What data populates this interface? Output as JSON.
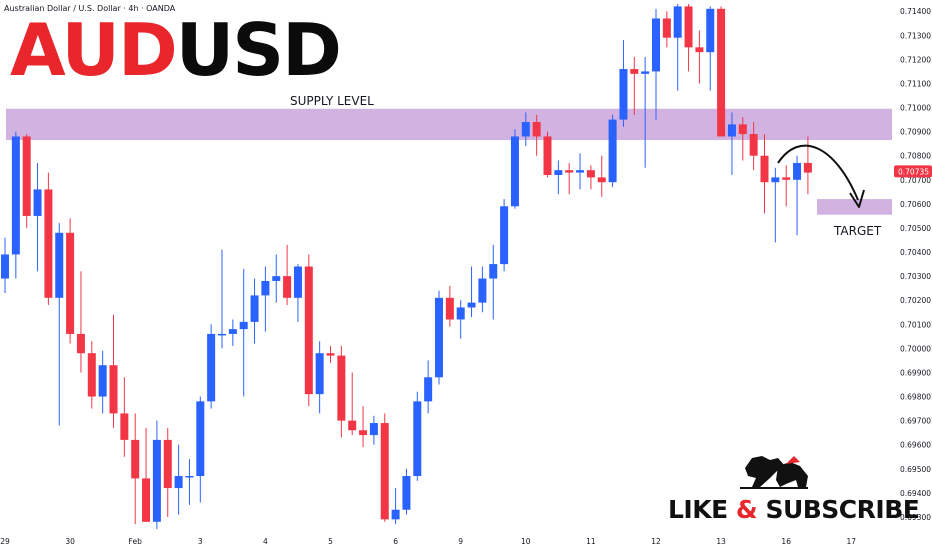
{
  "header": {
    "symbol_line": "Australian Dollar / U.S. Dollar · 4h · OANDA"
  },
  "title": {
    "part1": "AUD",
    "part2": "USD"
  },
  "annotations": {
    "supply_label": "SUPPLY LEVEL",
    "target_label": "TARGET",
    "cta_1": "LIKE",
    "cta_amp": "&",
    "cta_2": "SUBSCRIBE",
    "logo_icon": "bull-bear-fight-icon",
    "arrow_icon": "curved-down-arrow-icon"
  },
  "colors": {
    "up": "#2962ff",
    "down": "#f23645",
    "zone": "#c9a5dc",
    "price_label_bg": "#f23645"
  },
  "chart_data": {
    "type": "candlestick",
    "timeframe": "4h",
    "instrument": "AUDUSD",
    "ylim": [
      0.6925,
      0.7143
    ],
    "y_ticks": [
      0.714,
      0.713,
      0.712,
      0.711,
      0.71,
      0.709,
      0.708,
      0.707,
      0.706,
      0.705,
      0.704,
      0.703,
      0.702,
      0.701,
      0.7,
      0.699,
      0.698,
      0.697,
      0.696,
      0.695,
      0.694,
      0.693
    ],
    "y_tick_labels": [
      "0.71400",
      "0.71300",
      "0.71200",
      "0.71100",
      "0.71000",
      "0.70900",
      "0.70800",
      "0.70700",
      "0.70600",
      "0.70500",
      "0.70400",
      "0.70300",
      "0.70200",
      "0.70100",
      "0.70000",
      "0.69900",
      "0.69800",
      "0.69700",
      "0.69600",
      "0.69500",
      "0.69400",
      "0.69300"
    ],
    "x_ticks": [
      {
        "label": "29",
        "index": 0
      },
      {
        "label": "30",
        "index": 6
      },
      {
        "label": "Feb",
        "index": 12
      },
      {
        "label": "3",
        "index": 18
      },
      {
        "label": "4",
        "index": 24
      },
      {
        "label": "5",
        "index": 30
      },
      {
        "label": "6",
        "index": 36
      },
      {
        "label": "9",
        "index": 42
      },
      {
        "label": "10",
        "index": 48
      },
      {
        "label": "11",
        "index": 54
      },
      {
        "label": "12",
        "index": 60
      },
      {
        "label": "13",
        "index": 66
      },
      {
        "label": "16",
        "index": 72
      },
      {
        "label": "17",
        "index": 78
      }
    ],
    "current_price": 0.70735,
    "current_price_label": "0.70735",
    "supply_zone": [
      0.70865,
      0.70995
    ],
    "target_zone": [
      0.70555,
      0.7062
    ],
    "candles": [
      {
        "o": 0.7029,
        "h": 0.7046,
        "l": 0.7023,
        "c": 0.7039
      },
      {
        "o": 0.7039,
        "h": 0.709,
        "l": 0.7029,
        "c": 0.7088
      },
      {
        "o": 0.7088,
        "h": 0.7089,
        "l": 0.705,
        "c": 0.7055
      },
      {
        "o": 0.7055,
        "h": 0.7077,
        "l": 0.7032,
        "c": 0.7066
      },
      {
        "o": 0.7066,
        "h": 0.7073,
        "l": 0.7018,
        "c": 0.7021
      },
      {
        "o": 0.7021,
        "h": 0.7052,
        "l": 0.6968,
        "c": 0.7048
      },
      {
        "o": 0.7048,
        "h": 0.7054,
        "l": 0.7002,
        "c": 0.7006
      },
      {
        "o": 0.7006,
        "h": 0.7032,
        "l": 0.699,
        "c": 0.6998
      },
      {
        "o": 0.6998,
        "h": 0.7003,
        "l": 0.6975,
        "c": 0.698
      },
      {
        "o": 0.698,
        "h": 0.6999,
        "l": 0.6973,
        "c": 0.6993
      },
      {
        "o": 0.6993,
        "h": 0.7014,
        "l": 0.6967,
        "c": 0.6973
      },
      {
        "o": 0.6973,
        "h": 0.6988,
        "l": 0.6955,
        "c": 0.6962
      },
      {
        "o": 0.6962,
        "h": 0.6973,
        "l": 0.6927,
        "c": 0.6946
      },
      {
        "o": 0.6946,
        "h": 0.6967,
        "l": 0.6928,
        "c": 0.6928
      },
      {
        "o": 0.6928,
        "h": 0.697,
        "l": 0.6925,
        "c": 0.6962
      },
      {
        "o": 0.6962,
        "h": 0.6967,
        "l": 0.693,
        "c": 0.6942
      },
      {
        "o": 0.6942,
        "h": 0.696,
        "l": 0.6931,
        "c": 0.6947
      },
      {
        "o": 0.6947,
        "h": 0.6954,
        "l": 0.6935,
        "c": 0.6947
      },
      {
        "o": 0.6947,
        "h": 0.698,
        "l": 0.6936,
        "c": 0.6978
      },
      {
        "o": 0.6978,
        "h": 0.701,
        "l": 0.6975,
        "c": 0.7006
      },
      {
        "o": 0.7006,
        "h": 0.7041,
        "l": 0.7,
        "c": 0.7006
      },
      {
        "o": 0.7006,
        "h": 0.7012,
        "l": 0.7001,
        "c": 0.7008
      },
      {
        "o": 0.7008,
        "h": 0.7033,
        "l": 0.698,
        "c": 0.7011
      },
      {
        "o": 0.7011,
        "h": 0.7029,
        "l": 0.7002,
        "c": 0.7022
      },
      {
        "o": 0.7022,
        "h": 0.7034,
        "l": 0.7007,
        "c": 0.7028
      },
      {
        "o": 0.7028,
        "h": 0.7039,
        "l": 0.7019,
        "c": 0.703
      },
      {
        "o": 0.703,
        "h": 0.7043,
        "l": 0.7018,
        "c": 0.7021
      },
      {
        "o": 0.7021,
        "h": 0.7035,
        "l": 0.7011,
        "c": 0.7034
      },
      {
        "o": 0.7034,
        "h": 0.7039,
        "l": 0.6976,
        "c": 0.6981
      },
      {
        "o": 0.6981,
        "h": 0.7003,
        "l": 0.6973,
        "c": 0.6998
      },
      {
        "o": 0.6998,
        "h": 0.7001,
        "l": 0.6994,
        "c": 0.6997
      },
      {
        "o": 0.6997,
        "h": 0.7001,
        "l": 0.6963,
        "c": 0.697
      },
      {
        "o": 0.697,
        "h": 0.699,
        "l": 0.6964,
        "c": 0.6966
      },
      {
        "o": 0.6966,
        "h": 0.6976,
        "l": 0.6959,
        "c": 0.6964
      },
      {
        "o": 0.6964,
        "h": 0.6972,
        "l": 0.696,
        "c": 0.6969
      },
      {
        "o": 0.6969,
        "h": 0.6973,
        "l": 0.6928,
        "c": 0.6929
      },
      {
        "o": 0.6929,
        "h": 0.6942,
        "l": 0.6927,
        "c": 0.6933
      },
      {
        "o": 0.6933,
        "h": 0.695,
        "l": 0.6931,
        "c": 0.6947
      },
      {
        "o": 0.6947,
        "h": 0.6982,
        "l": 0.6945,
        "c": 0.6978
      },
      {
        "o": 0.6978,
        "h": 0.6995,
        "l": 0.6973,
        "c": 0.6988
      },
      {
        "o": 0.6988,
        "h": 0.7024,
        "l": 0.6985,
        "c": 0.7021
      },
      {
        "o": 0.7021,
        "h": 0.7026,
        "l": 0.7009,
        "c": 0.7012
      },
      {
        "o": 0.7012,
        "h": 0.702,
        "l": 0.7004,
        "c": 0.7017
      },
      {
        "o": 0.7017,
        "h": 0.7034,
        "l": 0.7013,
        "c": 0.7019
      },
      {
        "o": 0.7019,
        "h": 0.7034,
        "l": 0.7015,
        "c": 0.7029
      },
      {
        "o": 0.7029,
        "h": 0.7043,
        "l": 0.7012,
        "c": 0.7035
      },
      {
        "o": 0.7035,
        "h": 0.7062,
        "l": 0.7032,
        "c": 0.7059
      },
      {
        "o": 0.7059,
        "h": 0.7091,
        "l": 0.7058,
        "c": 0.7088
      },
      {
        "o": 0.7088,
        "h": 0.7098,
        "l": 0.7084,
        "c": 0.7094
      },
      {
        "o": 0.7094,
        "h": 0.7097,
        "l": 0.708,
        "c": 0.7088
      },
      {
        "o": 0.7088,
        "h": 0.709,
        "l": 0.7071,
        "c": 0.7072
      },
      {
        "o": 0.7072,
        "h": 0.7078,
        "l": 0.7064,
        "c": 0.7074
      },
      {
        "o": 0.7074,
        "h": 0.7077,
        "l": 0.7064,
        "c": 0.7073
      },
      {
        "o": 0.7073,
        "h": 0.7081,
        "l": 0.7066,
        "c": 0.7074
      },
      {
        "o": 0.7074,
        "h": 0.7076,
        "l": 0.7066,
        "c": 0.7071
      },
      {
        "o": 0.7071,
        "h": 0.708,
        "l": 0.7063,
        "c": 0.7069
      },
      {
        "o": 0.7069,
        "h": 0.7097,
        "l": 0.7067,
        "c": 0.7095
      },
      {
        "o": 0.7095,
        "h": 0.7128,
        "l": 0.7092,
        "c": 0.7116
      },
      {
        "o": 0.7116,
        "h": 0.7121,
        "l": 0.7097,
        "c": 0.7114
      },
      {
        "o": 0.7114,
        "h": 0.7121,
        "l": 0.7075,
        "c": 0.7115
      },
      {
        "o": 0.7115,
        "h": 0.7141,
        "l": 0.7095,
        "c": 0.7137
      },
      {
        "o": 0.7137,
        "h": 0.714,
        "l": 0.7125,
        "c": 0.7129
      },
      {
        "o": 0.7129,
        "h": 0.7143,
        "l": 0.7107,
        "c": 0.7142
      },
      {
        "o": 0.7142,
        "h": 0.7143,
        "l": 0.7115,
        "c": 0.7125
      },
      {
        "o": 0.7125,
        "h": 0.7132,
        "l": 0.711,
        "c": 0.7123
      },
      {
        "o": 0.7123,
        "h": 0.7142,
        "l": 0.7107,
        "c": 0.7141
      },
      {
        "o": 0.7141,
        "h": 0.7142,
        "l": 0.7088,
        "c": 0.7088
      },
      {
        "o": 0.7088,
        "h": 0.7098,
        "l": 0.7072,
        "c": 0.7093
      },
      {
        "o": 0.7093,
        "h": 0.7096,
        "l": 0.7078,
        "c": 0.7089
      },
      {
        "o": 0.7089,
        "h": 0.7094,
        "l": 0.7074,
        "c": 0.708
      },
      {
        "o": 0.708,
        "h": 0.7089,
        "l": 0.7056,
        "c": 0.7069
      },
      {
        "o": 0.7069,
        "h": 0.7075,
        "l": 0.7044,
        "c": 0.7071
      },
      {
        "o": 0.7071,
        "h": 0.7076,
        "l": 0.7059,
        "c": 0.707
      },
      {
        "o": 0.707,
        "h": 0.708,
        "l": 0.7047,
        "c": 0.7077
      },
      {
        "o": 0.7077,
        "h": 0.7088,
        "l": 0.7064,
        "c": 0.7073
      }
    ]
  }
}
